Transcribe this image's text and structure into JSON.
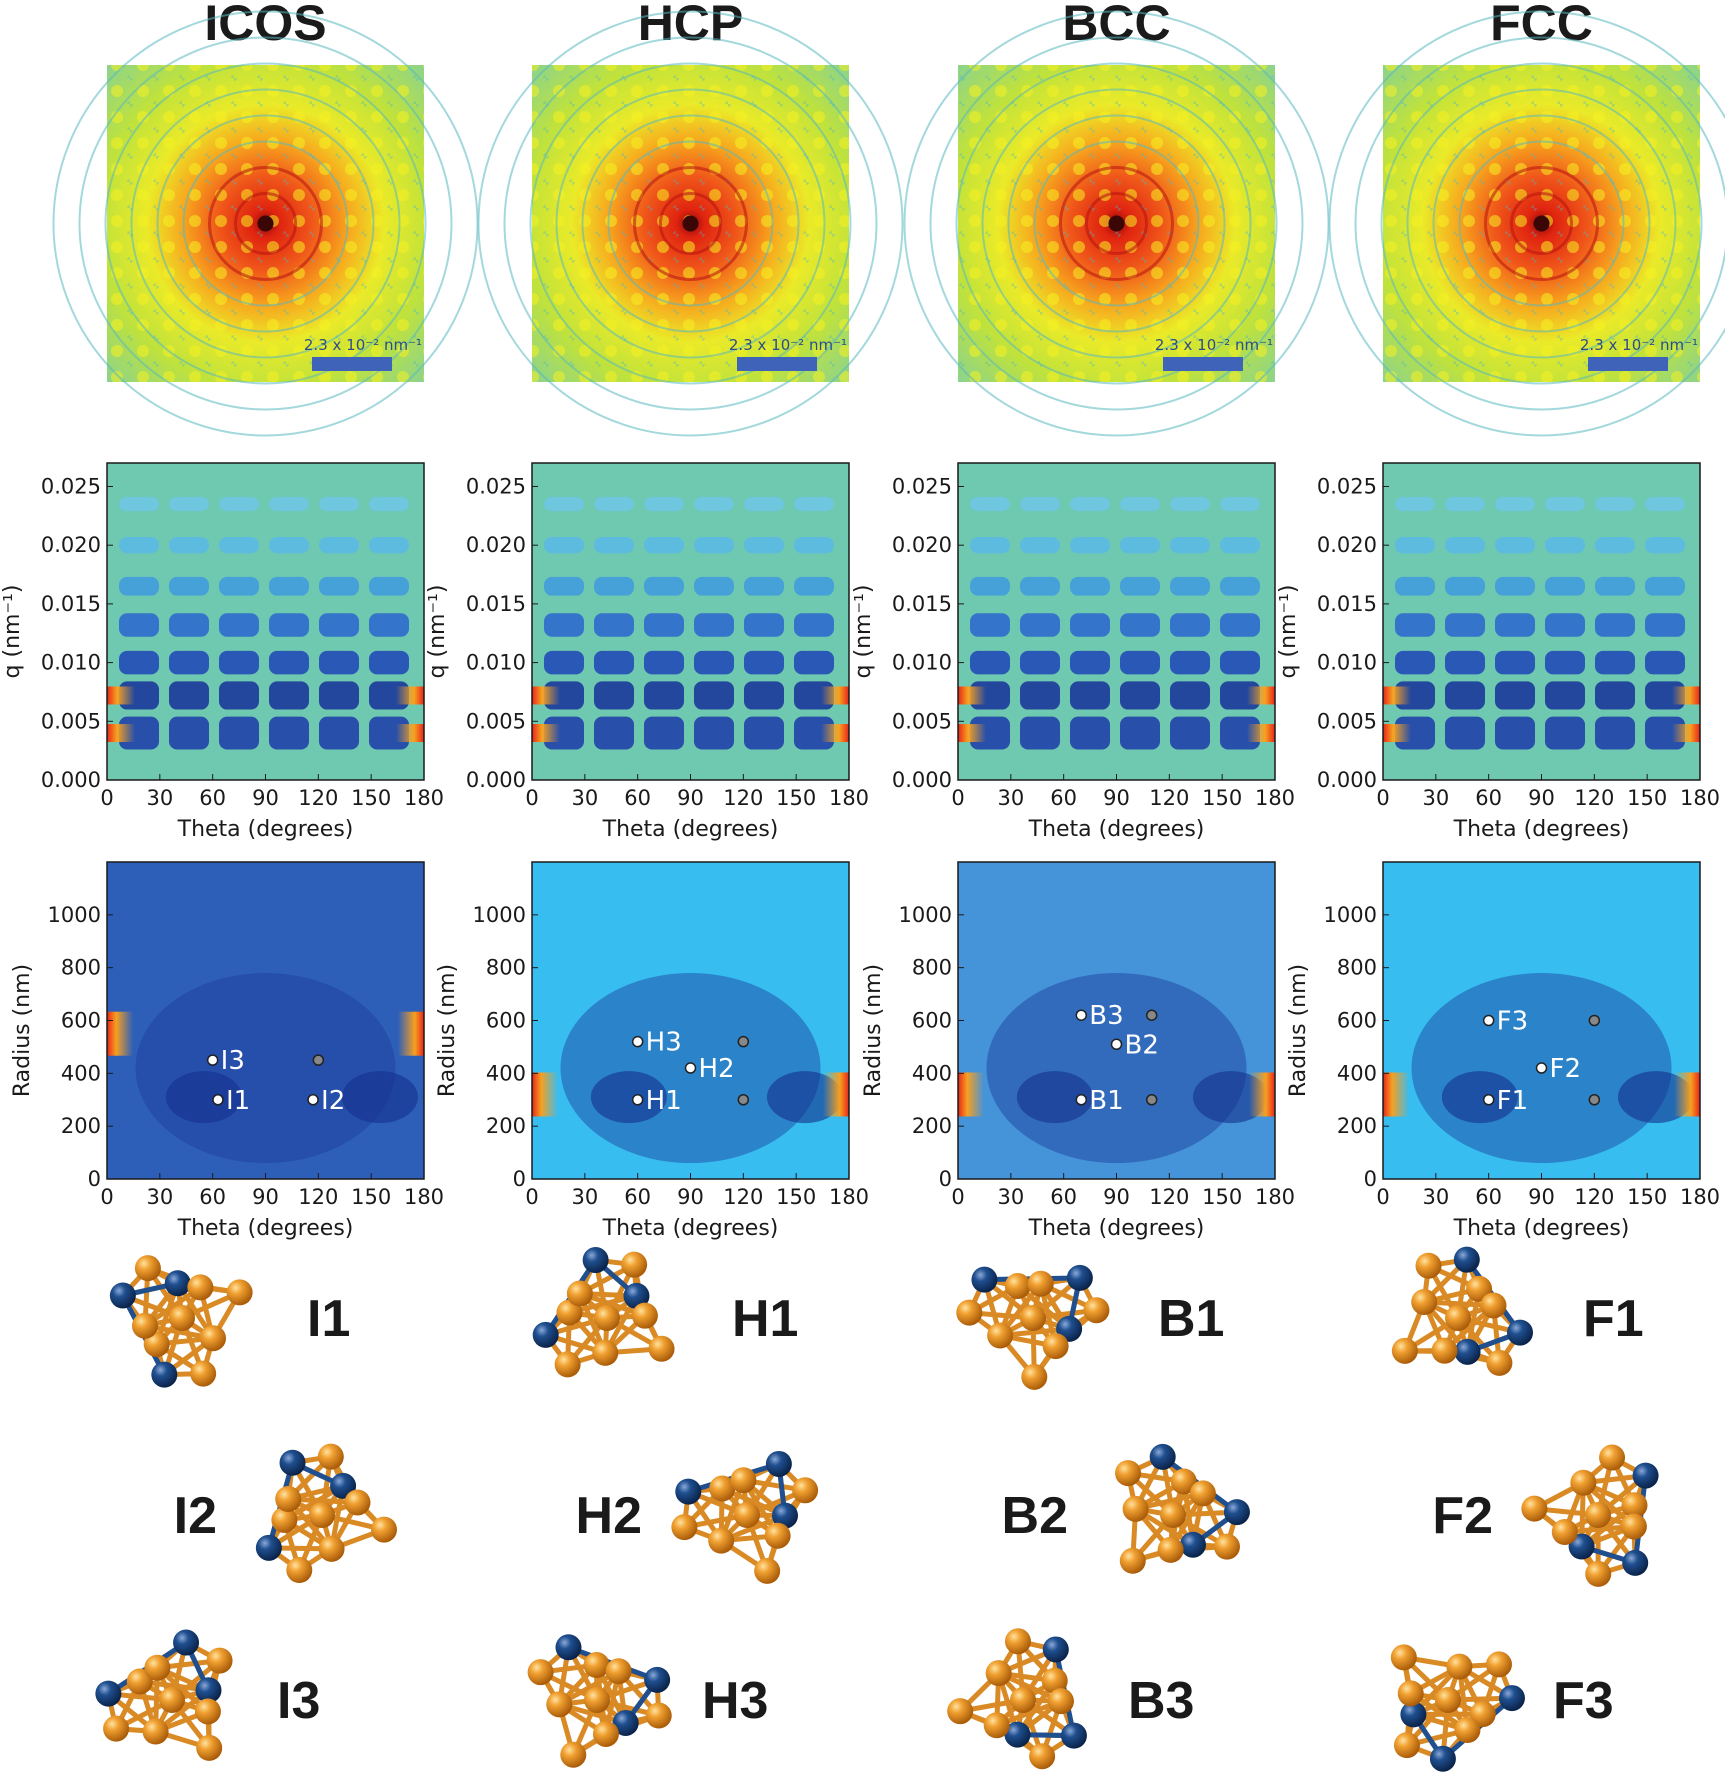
{
  "columns": [
    {
      "title": "ICOS",
      "scale_label": "2.3 x 10⁻² nm⁻¹",
      "bg_color": "#2e5fb8",
      "points": [
        {
          "label": "I3",
          "theta": 60,
          "radius": 450,
          "fill": "#ffffff",
          "labeled": true
        },
        {
          "label": "I1",
          "theta": 63,
          "radius": 300,
          "fill": "#ffffff",
          "labeled": true
        },
        {
          "label": "",
          "theta": 120,
          "radius": 450,
          "fill": "#888888",
          "labeled": false
        },
        {
          "label": "I2",
          "theta": 117,
          "radius": 300,
          "fill": "#ffffff",
          "labeled": true
        }
      ],
      "clusters": [
        "I1",
        "I2",
        "I3"
      ]
    },
    {
      "title": "HCP",
      "scale_label": "2.3 x 10⁻² nm⁻¹",
      "bg_color": "#38bdf0",
      "points": [
        {
          "label": "H3",
          "theta": 60,
          "radius": 520,
          "fill": "#ffffff",
          "labeled": true
        },
        {
          "label": "H2",
          "theta": 90,
          "radius": 420,
          "fill": "#ffffff",
          "labeled": true
        },
        {
          "label": "H1",
          "theta": 60,
          "radius": 300,
          "fill": "#ffffff",
          "labeled": true
        },
        {
          "label": "",
          "theta": 120,
          "radius": 520,
          "fill": "#888888",
          "labeled": false
        },
        {
          "label": "",
          "theta": 120,
          "radius": 300,
          "fill": "#888888",
          "labeled": false
        }
      ],
      "clusters": [
        "H1",
        "H2",
        "H3"
      ]
    },
    {
      "title": "BCC",
      "scale_label": "2.3 x 10⁻² nm⁻¹",
      "bg_color": "#4593d8",
      "points": [
        {
          "label": "B3",
          "theta": 70,
          "radius": 620,
          "fill": "#ffffff",
          "labeled": true
        },
        {
          "label": "B2",
          "theta": 90,
          "radius": 510,
          "fill": "#ffffff",
          "labeled": true
        },
        {
          "label": "B1",
          "theta": 70,
          "radius": 300,
          "fill": "#ffffff",
          "labeled": true
        },
        {
          "label": "",
          "theta": 110,
          "radius": 620,
          "fill": "#888888",
          "labeled": false
        },
        {
          "label": "",
          "theta": 110,
          "radius": 300,
          "fill": "#888888",
          "labeled": false
        }
      ],
      "clusters": [
        "B1",
        "B2",
        "B3"
      ]
    },
    {
      "title": "FCC",
      "scale_label": "2.3 x 10⁻² nm⁻¹",
      "bg_color": "#38bdf0",
      "points": [
        {
          "label": "F3",
          "theta": 60,
          "radius": 600,
          "fill": "#ffffff",
          "labeled": true
        },
        {
          "label": "F2",
          "theta": 90,
          "radius": 420,
          "fill": "#ffffff",
          "labeled": true
        },
        {
          "label": "F1",
          "theta": 60,
          "radius": 300,
          "fill": "#ffffff",
          "labeled": true
        },
        {
          "label": "",
          "theta": 120,
          "radius": 600,
          "fill": "#888888",
          "labeled": false
        },
        {
          "label": "",
          "theta": 120,
          "radius": 300,
          "fill": "#888888",
          "labeled": false
        }
      ],
      "clusters": [
        "F1",
        "F2",
        "F3"
      ]
    }
  ],
  "chart_data": [
    {
      "type": "heatmap",
      "panel": "q-theta map",
      "xlabel": "Theta (degrees)",
      "ylabel": "q (nm⁻¹)",
      "xlim": [
        0,
        180
      ],
      "ylim": [
        0,
        0.027
      ],
      "xticks": [
        0,
        30,
        60,
        90,
        120,
        150,
        180
      ],
      "yticks": [
        "0.000",
        "0.005",
        "0.010",
        "0.015",
        "0.020",
        "0.025"
      ]
    },
    {
      "type": "heatmap",
      "panel": "radius-theta map",
      "xlabel": "Theta (degrees)",
      "ylabel": "Radius (nm)",
      "xlim": [
        0,
        180
      ],
      "ylim": [
        0,
        1200
      ],
      "xticks": [
        0,
        30,
        60,
        90,
        120,
        150,
        180
      ],
      "yticks": [
        "0",
        "200",
        "400",
        "600",
        "800",
        "1000"
      ]
    }
  ]
}
